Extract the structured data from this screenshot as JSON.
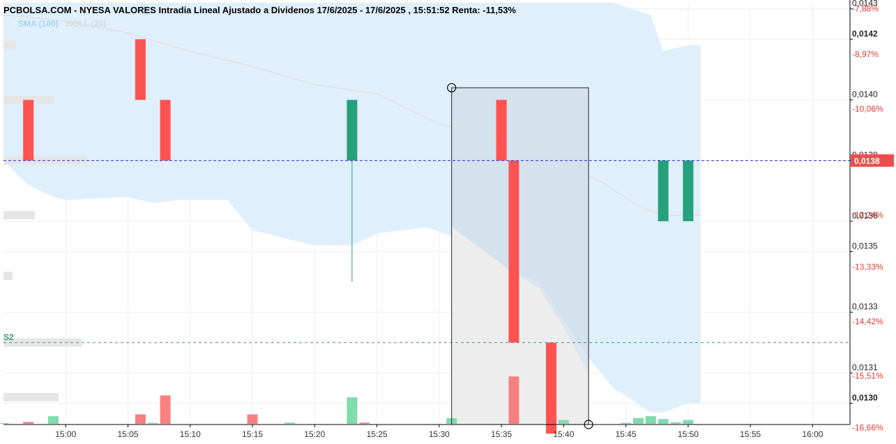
{
  "header": {
    "title": "PCBOLSA.COM - NYESA VALORES Intradia Lineal Ajustado a Dividenos 17/6/2025 - 17/6/2025 , 15:51:52 Renta: -11,53%"
  },
  "legend": {
    "sma": "SMA (100)",
    "boll": "BOLL (20)"
  },
  "colors": {
    "up": "#26a17b",
    "down": "#ff5252",
    "band": "#dff0fc",
    "current_line": "#3a3ad8",
    "s2_line": "#2e9e6e",
    "price_tag": "#ee4d4d"
  },
  "chart_data": {
    "type": "candlestick",
    "price_axis": {
      "min": 0.01293,
      "max": 0.01432,
      "ticks": [
        {
          "value": 0.0143,
          "label": "0,0143",
          "bold": false
        },
        {
          "value": 0.0142,
          "label": "0,0142",
          "bold": true
        },
        {
          "value": 0.014,
          "label": "0,0140",
          "bold": false
        },
        {
          "value": 0.0138,
          "label": "0,0138",
          "bold": false
        },
        {
          "value": 0.0136,
          "label": "0,0136",
          "bold": false
        },
        {
          "value": 0.0135,
          "label": "0,0135",
          "bold": false
        },
        {
          "value": 0.0133,
          "label": "0,0133",
          "bold": false
        },
        {
          "value": 0.0131,
          "label": "0,0131",
          "bold": false
        },
        {
          "value": 0.013,
          "label": "0,0130",
          "bold": true
        }
      ],
      "percent_ticks": [
        {
          "value": 0.0143,
          "label": "-7,88%"
        },
        {
          "value": 0.01415,
          "label": "-8,97%"
        },
        {
          "value": 0.01397,
          "label": "-10,06%"
        },
        {
          "value": 0.0138,
          "label": "-11,15%"
        },
        {
          "value": 0.01362,
          "label": "-12,24%"
        },
        {
          "value": 0.01345,
          "label": "-13,33%"
        },
        {
          "value": 0.01327,
          "label": "-14,42%"
        },
        {
          "value": 0.01309,
          "label": "-15,51%"
        },
        {
          "value": 0.01292,
          "label": "-16,66%"
        }
      ]
    },
    "time_axis": {
      "start": "14:55",
      "end": "16:03",
      "ticks": [
        "15:00",
        "15:05",
        "15:10",
        "15:15",
        "15:20",
        "15:25",
        "15:30",
        "15:35",
        "15:40",
        "15:45",
        "15:50",
        "15:55",
        "16:00"
      ]
    },
    "candles": [
      {
        "time": "14:57",
        "open": 0.014,
        "close": 0.0138,
        "high": 0.014,
        "low": 0.0138
      },
      {
        "time": "15:06",
        "open": 0.0142,
        "close": 0.014,
        "high": 0.0142,
        "low": 0.014
      },
      {
        "time": "15:08",
        "open": 0.014,
        "close": 0.0138,
        "high": 0.014,
        "low": 0.0138
      },
      {
        "time": "15:23",
        "open": 0.0138,
        "close": 0.014,
        "high": 0.014,
        "low": 0.0134
      },
      {
        "time": "15:35",
        "open": 0.014,
        "close": 0.0138,
        "high": 0.014,
        "low": 0.0138
      },
      {
        "time": "15:36",
        "open": 0.0138,
        "close": 0.0132,
        "high": 0.0138,
        "low": 0.0132
      },
      {
        "time": "15:39",
        "open": 0.0132,
        "close": 0.0129,
        "high": 0.0132,
        "low": 0.0129
      },
      {
        "time": "15:48",
        "open": 0.0136,
        "close": 0.0138,
        "high": 0.0138,
        "low": 0.0136
      },
      {
        "time": "15:50",
        "open": 0.0136,
        "close": 0.0138,
        "high": 0.0138,
        "low": 0.0136
      }
    ],
    "volume": [
      {
        "time": "14:57",
        "value": 1,
        "up": false
      },
      {
        "time": "14:55",
        "value": 0.4,
        "up": true
      },
      {
        "time": "14:59",
        "value": 4,
        "up": true
      },
      {
        "time": "15:06",
        "value": 5,
        "up": false
      },
      {
        "time": "15:07",
        "value": 0.5,
        "up": true
      },
      {
        "time": "15:08",
        "value": 15,
        "up": false
      },
      {
        "time": "15:15",
        "value": 5,
        "up": false
      },
      {
        "time": "15:18",
        "value": 0.6,
        "up": true
      },
      {
        "time": "15:23",
        "value": 14,
        "up": true
      },
      {
        "time": "15:24",
        "value": 0.6,
        "up": false
      },
      {
        "time": "15:31",
        "value": 3,
        "up": true
      },
      {
        "time": "15:36",
        "value": 25,
        "up": false
      },
      {
        "time": "15:39",
        "value": 10,
        "up": false
      },
      {
        "time": "15:40",
        "value": 2,
        "up": true
      },
      {
        "time": "15:45",
        "value": 0.5,
        "up": true
      },
      {
        "time": "15:46",
        "value": 3,
        "up": true
      },
      {
        "time": "15:47",
        "value": 4,
        "up": true
      },
      {
        "time": "15:48",
        "value": 2.5,
        "up": true
      },
      {
        "time": "15:49",
        "value": 0.8,
        "up": true
      },
      {
        "time": "15:50",
        "value": 2,
        "up": true
      }
    ],
    "boll_band": {
      "times": [
        "14:55",
        "14:57",
        "14:59",
        "15:00",
        "15:05",
        "15:07",
        "15:09",
        "15:13",
        "15:15",
        "15:20",
        "15:23",
        "15:25",
        "15:29",
        "15:33",
        "15:36",
        "15:38",
        "15:40",
        "15:42",
        "15:44",
        "15:47",
        "15:48",
        "15:50",
        "15:51"
      ],
      "upper": [
        0.01432,
        0.01432,
        0.01432,
        0.01432,
        0.01432,
        0.01432,
        0.01432,
        0.01432,
        0.01432,
        0.01432,
        0.01432,
        0.01432,
        0.01432,
        0.01432,
        0.01432,
        0.01432,
        0.01432,
        0.01432,
        0.01432,
        0.01428,
        0.01416,
        0.01418,
        0.01418
      ],
      "lower": [
        0.0138,
        0.01372,
        0.01368,
        0.01367,
        0.01368,
        0.01366,
        0.01367,
        0.01367,
        0.01357,
        0.01352,
        0.01352,
        0.01356,
        0.01358,
        0.01352,
        0.01343,
        0.0134,
        0.01328,
        0.01315,
        0.01305,
        0.01297,
        0.01297,
        0.013,
        0.013
      ]
    },
    "sma_line": {
      "times": [
        "14:55",
        "15:00",
        "15:05",
        "15:10",
        "15:15",
        "15:20",
        "15:25",
        "15:30",
        "15:35",
        "15:38",
        "15:40",
        "15:43",
        "15:46",
        "15:48",
        "15:50",
        "15:51"
      ],
      "values": [
        0.01428,
        0.01426,
        0.01422,
        0.01416,
        0.01411,
        0.01405,
        0.01402,
        0.01392,
        0.01388,
        0.01385,
        0.01379,
        0.01373,
        0.01365,
        0.01362,
        0.01362,
        0.01362
      ]
    },
    "current_price": {
      "value": 0.0138,
      "label": "0,0138"
    },
    "support": {
      "value": 0.0132,
      "label": "S2"
    },
    "selection_box": {
      "time_start": "15:31",
      "time_end": "15:42",
      "price_top": 0.01404,
      "price_bottom": 0.01293
    }
  }
}
